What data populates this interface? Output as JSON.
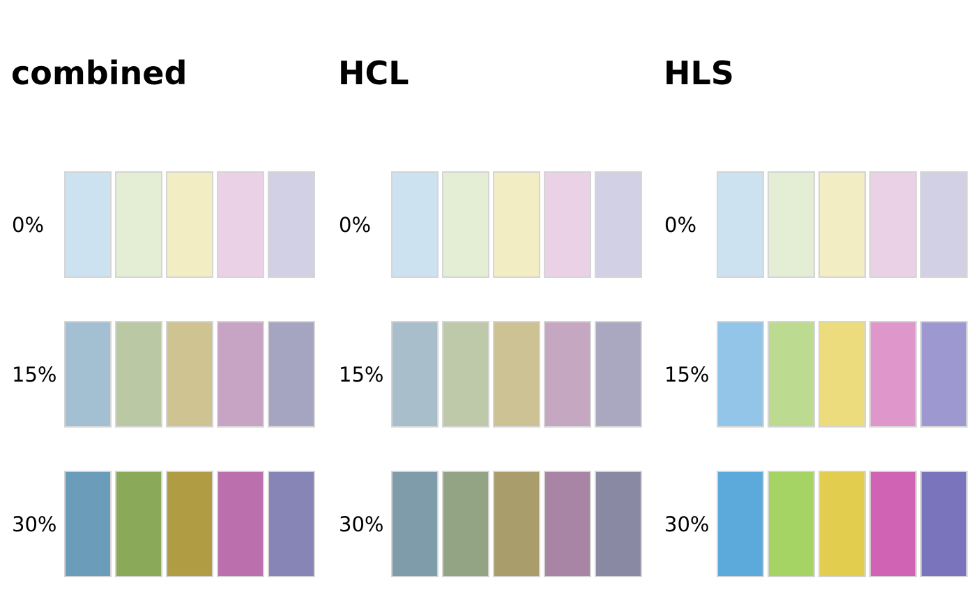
{
  "figure": {
    "row_labels": [
      "0%",
      "15%",
      "30%"
    ],
    "swatch_border_color": "#d5d5d5",
    "background_color": "#ffffff",
    "columns": [
      {
        "title": "combined",
        "rows": [
          {
            "label": "0%",
            "colors": [
              "#cce2f0",
              "#e3eed5",
              "#f3edc3",
              "#ebd1e6",
              "#d1d0e4"
            ]
          },
          {
            "label": "15%",
            "colors": [
              "#a3bfd2",
              "#bac9a3",
              "#cfc491",
              "#c8a4c4",
              "#a6a5c1"
            ]
          },
          {
            "label": "30%",
            "colors": [
              "#6b9cba",
              "#8baa59",
              "#b09d43",
              "#bb70ad",
              "#8685b5"
            ]
          }
        ]
      },
      {
        "title": "HCL",
        "rows": [
          {
            "label": "0%",
            "colors": [
              "#cce2f0",
              "#e3eed5",
              "#f3edc3",
              "#ebd1e6",
              "#d1d0e4"
            ]
          },
          {
            "label": "15%",
            "colors": [
              "#a8becb",
              "#bec9aa",
              "#cdc293",
              "#c6a7c2",
              "#a9a8c0"
            ]
          },
          {
            "label": "30%",
            "colors": [
              "#7f9cab",
              "#92a483",
              "#a99e6b",
              "#a885a4",
              "#8a89a4"
            ]
          }
        ]
      },
      {
        "title": "HLS",
        "rows": [
          {
            "label": "0%",
            "colors": [
              "#cce2f0",
              "#e3eed5",
              "#f3edc3",
              "#ebd1e6",
              "#d1d0e4"
            ]
          },
          {
            "label": "15%",
            "colors": [
              "#93c5e8",
              "#bcdb91",
              "#ecdc7d",
              "#df97cb",
              "#9e98d0"
            ]
          },
          {
            "label": "30%",
            "colors": [
              "#5ca9db",
              "#a5d364",
              "#e2cd4e",
              "#d063b3",
              "#7a74bd"
            ]
          }
        ]
      }
    ]
  },
  "chart_data": {
    "type": "heatmap",
    "title": "",
    "columns": [
      "combined",
      "HCL",
      "HLS"
    ],
    "rows": [
      "0%",
      "15%",
      "30%"
    ],
    "swatches_per_row": 5,
    "legend_position": "none",
    "grid": false,
    "cell_colors": {
      "combined": {
        "0%": [
          "#cce2f0",
          "#e3eed5",
          "#f3edc3",
          "#ebd1e6",
          "#d1d0e4"
        ],
        "15%": [
          "#a3bfd2",
          "#bac9a3",
          "#cfc491",
          "#c8a4c4",
          "#a6a5c1"
        ],
        "30%": [
          "#6b9cba",
          "#8baa59",
          "#b09d43",
          "#bb70ad",
          "#8685b5"
        ]
      },
      "HCL": {
        "0%": [
          "#cce2f0",
          "#e3eed5",
          "#f3edc3",
          "#ebd1e6",
          "#d1d0e4"
        ],
        "15%": [
          "#a8becb",
          "#bec9aa",
          "#cdc293",
          "#c6a7c2",
          "#a9a8c0"
        ],
        "30%": [
          "#7f9cab",
          "#92a483",
          "#a99e6b",
          "#a885a4",
          "#8a89a4"
        ]
      },
      "HLS": {
        "0%": [
          "#cce2f0",
          "#e3eed5",
          "#f3edc3",
          "#ebd1e6",
          "#d1d0e4"
        ],
        "15%": [
          "#93c5e8",
          "#bcdb91",
          "#ecdc7d",
          "#df97cb",
          "#9e98d0"
        ],
        "30%": [
          "#5ca9db",
          "#a5d364",
          "#e2cd4e",
          "#d063b3",
          "#7a74bd"
        ]
      }
    }
  }
}
